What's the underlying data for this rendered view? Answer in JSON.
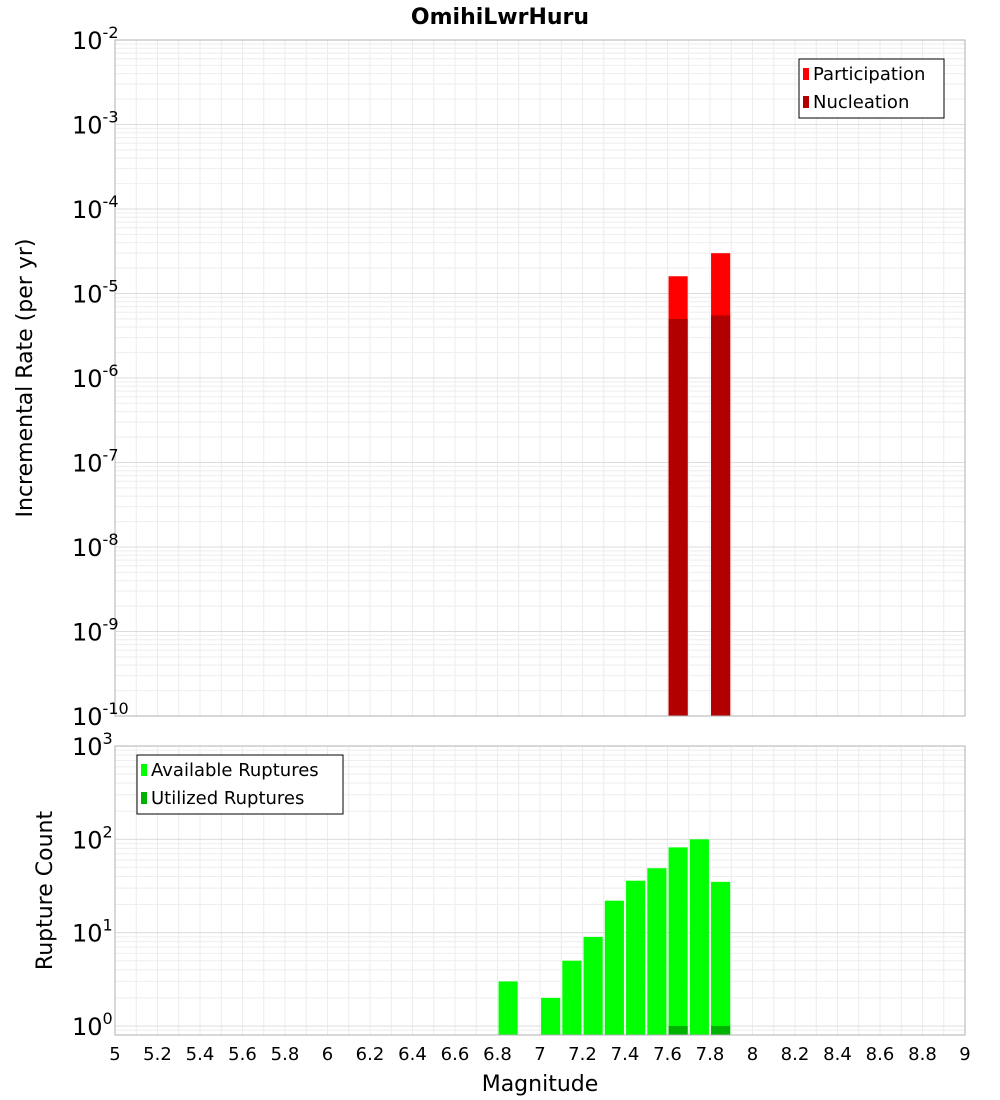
{
  "chart_data": [
    {
      "type": "bar",
      "title": "OmihiLwrHuru",
      "xlabel": "Magnitude",
      "ylabel": "Incremental Rate (per yr)",
      "yscale": "log",
      "xlim": [
        5,
        9
      ],
      "ylim": [
        1e-10,
        0.01
      ],
      "y_tick_exponents": [
        "-10",
        "-9",
        "-8",
        "-7",
        "-6",
        "-5",
        "-4",
        "-3",
        "-2"
      ],
      "y_tick_base": "10",
      "legend_position": "top-right",
      "bar_width": 0.09,
      "series": [
        {
          "name": "Participation",
          "color": "#ff0000",
          "x": [
            7.65,
            7.85
          ],
          "values": [
            1.6e-05,
            3e-05
          ]
        },
        {
          "name": "Nucleation",
          "color": "#b20000",
          "x": [
            7.65,
            7.85
          ],
          "values": [
            5e-06,
            5.5e-06
          ]
        }
      ]
    },
    {
      "type": "bar",
      "xlabel": "Magnitude",
      "ylabel": "Rupture Count",
      "yscale": "log",
      "xlim": [
        5,
        9
      ],
      "ylim": [
        0.8,
        1000
      ],
      "y_tick_exponents": [
        "0",
        "1",
        "2",
        "3"
      ],
      "y_tick_base": "10",
      "legend_position": "top-left",
      "bar_width": 0.09,
      "series": [
        {
          "name": "Available Ruptures",
          "color": "#00ff00",
          "x": [
            6.85,
            7.05,
            7.15,
            7.25,
            7.35,
            7.45,
            7.55,
            7.65,
            7.75,
            7.85
          ],
          "values": [
            3,
            2,
            5,
            9,
            22,
            36,
            49,
            82,
            100,
            35
          ]
        },
        {
          "name": "Utilized Ruptures",
          "color": "#00b200",
          "x": [
            7.65,
            7.85
          ],
          "values": [
            1,
            1
          ]
        }
      ]
    }
  ],
  "x_ticks": [
    "5",
    "5.2",
    "5.4",
    "5.6",
    "5.8",
    "6",
    "6.2",
    "6.4",
    "6.6",
    "6.8",
    "7",
    "7.2",
    "7.4",
    "7.6",
    "7.8",
    "8",
    "8.2",
    "8.4",
    "8.6",
    "8.8",
    "9"
  ]
}
